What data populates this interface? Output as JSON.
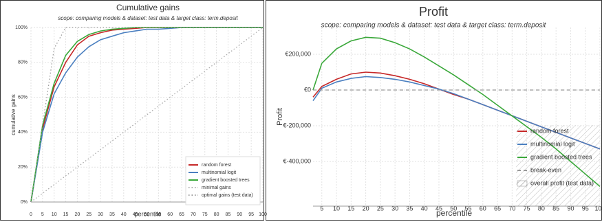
{
  "chart_data": [
    {
      "type": "line",
      "title": "Cumulative gains",
      "subtitle": "scope: comparing models & dataset: test data & target class: term.deposit",
      "x_label": "percentile",
      "y_label": "cumulative gains",
      "x": [
        0,
        5,
        10,
        15,
        20,
        25,
        30,
        35,
        40,
        45,
        50,
        55,
        60,
        65,
        70,
        75,
        80,
        85,
        90,
        95,
        100
      ],
      "xlim": [
        0,
        100
      ],
      "xticks": [
        0,
        5,
        10,
        15,
        20,
        25,
        30,
        35,
        40,
        45,
        50,
        55,
        60,
        65,
        70,
        75,
        80,
        85,
        90,
        95,
        100
      ],
      "ylim": [
        0,
        1
      ],
      "yticks": [
        {
          "value": 0,
          "label": "0%"
        },
        {
          "value": 0.2,
          "label": "20%"
        },
        {
          "value": 0.4,
          "label": "40%"
        },
        {
          "value": 0.6,
          "label": "60%"
        },
        {
          "value": 0.8,
          "label": "80%"
        },
        {
          "value": 1,
          "label": "100%"
        }
      ],
      "grid": true,
      "legend": "bottom-right",
      "series": [
        {
          "name": "random forest",
          "color": "#c62828",
          "values": [
            0,
            0.42,
            0.66,
            0.8,
            0.9,
            0.95,
            0.97,
            0.985,
            0.99,
            0.995,
            1,
            1,
            1,
            1,
            1,
            1,
            1,
            1,
            1,
            1,
            1
          ]
        },
        {
          "name": "multinomial logit",
          "color": "#4a7fc0",
          "values": [
            0,
            0.4,
            0.62,
            0.74,
            0.83,
            0.89,
            0.93,
            0.95,
            0.97,
            0.98,
            0.99,
            0.99,
            0.995,
            1,
            1,
            1,
            1,
            1,
            1,
            1,
            1
          ]
        },
        {
          "name": "gradient boosted trees",
          "color": "#3aa83a",
          "values": [
            0,
            0.44,
            0.68,
            0.84,
            0.92,
            0.96,
            0.98,
            0.99,
            0.995,
            1,
            1,
            1,
            1,
            1,
            1,
            1,
            1,
            1,
            1,
            1,
            1
          ]
        },
        {
          "name": "minimal gains",
          "color": "#aaaaaa",
          "style": "dotted",
          "values": [
            0,
            0.05,
            0.1,
            0.15,
            0.2,
            0.25,
            0.3,
            0.35,
            0.4,
            0.45,
            0.5,
            0.55,
            0.6,
            0.65,
            0.7,
            0.75,
            0.8,
            0.85,
            0.9,
            0.95,
            1
          ]
        },
        {
          "name": "optimal gains (test data)",
          "color": "#999999",
          "style": "dotted",
          "values": [
            0,
            0.44,
            0.88,
            1,
            1,
            1,
            1,
            1,
            1,
            1,
            1,
            1,
            1,
            1,
            1,
            1,
            1,
            1,
            1,
            1,
            1
          ]
        }
      ]
    },
    {
      "type": "line",
      "title": "Profit",
      "subtitle": "scope: comparing models & dataset: test data & target class: term.deposit",
      "x_label": "percentile",
      "y_label": "Profit",
      "x": [
        2,
        5,
        10,
        15,
        20,
        25,
        30,
        35,
        40,
        45,
        50,
        55,
        60,
        65,
        70,
        75,
        80,
        85,
        90,
        95,
        100
      ],
      "xlim": [
        2,
        100
      ],
      "xticks": [
        5,
        10,
        15,
        20,
        25,
        30,
        35,
        40,
        45,
        50,
        55,
        60,
        65,
        70,
        75,
        80,
        85,
        90,
        95,
        100
      ],
      "ylim": [
        -650000,
        350000
      ],
      "yticks": [
        {
          "value": -400000,
          "label": "€-400,000"
        },
        {
          "value": -200000,
          "label": "€-200,000"
        },
        {
          "value": 0,
          "label": "€0"
        },
        {
          "value": 200000,
          "label": "€200,000"
        }
      ],
      "grid": true,
      "legend": "bottom-right",
      "series": [
        {
          "name": "random forest",
          "color": "#c62828",
          "values": [
            -40000,
            20000,
            60000,
            90000,
            100000,
            95000,
            80000,
            60000,
            35000,
            5000,
            -25000,
            -51000,
            -82000,
            -113000,
            -144000,
            -175000,
            -206000,
            -237000,
            -268000,
            -299000,
            -330000
          ]
        },
        {
          "name": "multinomial logit",
          "color": "#4a7fc0",
          "values": [
            -60000,
            10000,
            45000,
            65000,
            75000,
            70000,
            60000,
            45000,
            25000,
            5000,
            -20000,
            -51000,
            -82000,
            -113000,
            -144000,
            -175000,
            -206000,
            -237000,
            -268000,
            -299000,
            -330000
          ]
        },
        {
          "name": "gradient boosted trees",
          "color": "#3aa83a",
          "values": [
            0,
            150000,
            230000,
            275000,
            295000,
            290000,
            265000,
            230000,
            185000,
            135000,
            85000,
            30000,
            -25000,
            -85000,
            -145000,
            -205000,
            -265000,
            -330000,
            -400000,
            -470000,
            -540000
          ]
        },
        {
          "name": "break-even",
          "color": "#999999",
          "style": "dashed",
          "values": [
            0,
            0,
            0,
            0,
            0,
            0,
            0,
            0,
            0,
            0,
            0,
            0,
            0,
            0,
            0,
            0,
            0,
            0,
            0,
            0,
            0
          ]
        },
        {
          "name": "overall profit (test data)",
          "color": "#888888",
          "style": "hatch"
        }
      ]
    }
  ]
}
